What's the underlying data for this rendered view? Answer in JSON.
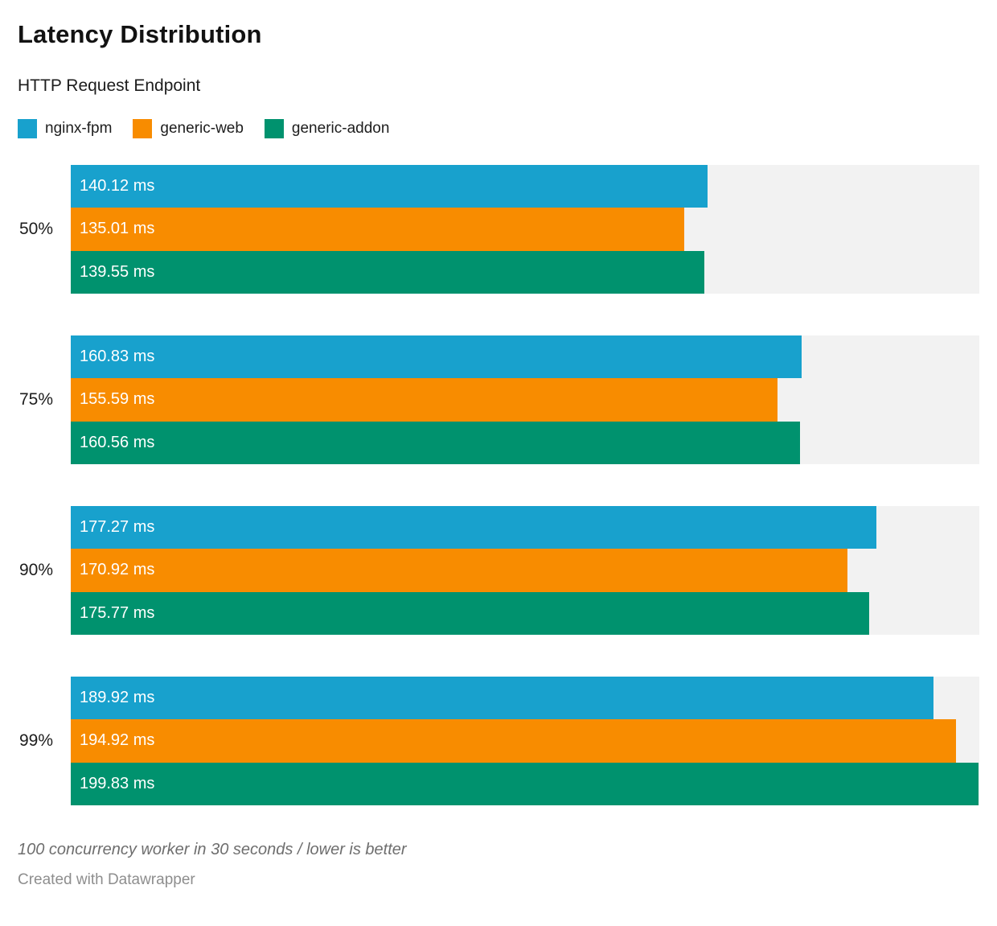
{
  "header": {
    "title": "Latency Distribution",
    "subtitle": "HTTP Request Endpoint"
  },
  "chart_data": {
    "type": "bar",
    "orientation": "horizontal",
    "title": "Latency Distribution",
    "subtitle": "HTTP Request Endpoint",
    "categories": [
      "50%",
      "75%",
      "90%",
      "99%"
    ],
    "series": [
      {
        "name": "nginx-fpm",
        "color": "#18a1cd",
        "values": [
          140.12,
          160.83,
          177.27,
          189.92
        ]
      },
      {
        "name": "generic-web",
        "color": "#f88c00",
        "values": [
          135.01,
          155.59,
          170.92,
          194.92
        ]
      },
      {
        "name": "generic-addon",
        "color": "#00926e",
        "values": [
          139.55,
          160.56,
          175.77,
          199.83
        ]
      }
    ],
    "value_unit": "ms",
    "value_label_format": "{value} ms",
    "xlim": [
      0,
      200
    ],
    "grid": false,
    "legend_position": "top",
    "track_color": "#f2f2f2",
    "bar_label_color": "#ffffff"
  },
  "footer": {
    "note": "100 concurrency worker in 30 seconds / lower is better",
    "attribution": "Created with Datawrapper"
  }
}
